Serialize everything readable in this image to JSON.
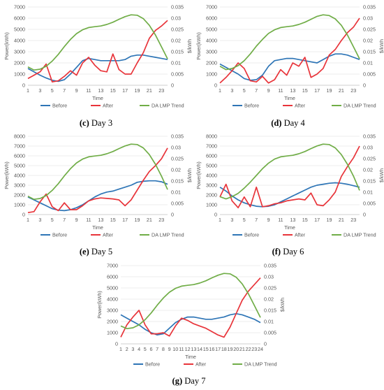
{
  "colors": {
    "before": "#2e75b6",
    "after": "#e8343a",
    "da": "#70ad47",
    "grid": "#d9d9d9",
    "axis": "#bfbfbf",
    "text": "#595959"
  },
  "chart_data": [
    {
      "type": "line",
      "caption_letter": "(c)",
      "caption_text": "Day 3",
      "xlabel": "Time",
      "ylabel": "Power(kWh)",
      "y2label": "$/kWh",
      "x_ticks": [
        1,
        3,
        5,
        7,
        9,
        11,
        13,
        15,
        17,
        19,
        21,
        23
      ],
      "x": [
        1,
        2,
        3,
        4,
        5,
        6,
        7,
        8,
        9,
        10,
        11,
        12,
        13,
        14,
        15,
        16,
        17,
        18,
        19,
        20,
        21,
        22,
        23,
        24
      ],
      "ylim": [
        0,
        7000
      ],
      "y_ticks": [
        0,
        1000,
        2000,
        3000,
        4000,
        5000,
        6000,
        7000
      ],
      "y2lim": [
        0,
        0.035
      ],
      "y2_ticks": [
        "0",
        "0.005",
        "0.01",
        "0.015",
        "0.02",
        "0.025",
        "0.03",
        "0.035"
      ],
      "legend_position": "bottom",
      "series": [
        {
          "name": "Before",
          "axis": "left",
          "values": [
            1500,
            1200,
            900,
            650,
            450,
            350,
            500,
            1000,
            1600,
            2200,
            2400,
            2300,
            2200,
            2200,
            2200,
            2200,
            2300,
            2600,
            2700,
            2700,
            2600,
            2500,
            2400,
            2300
          ]
        },
        {
          "name": "After",
          "axis": "left",
          "values": [
            600,
            900,
            1200,
            1900,
            300,
            400,
            800,
            1300,
            900,
            2000,
            2500,
            1800,
            1300,
            1200,
            2800,
            1400,
            1000,
            1000,
            2000,
            2900,
            4200,
            4900,
            5300,
            5800
          ]
        },
        {
          "name": "DA LMP Trend",
          "axis": "right",
          "values": [
            0.0082,
            0.0068,
            0.0072,
            0.0085,
            0.0108,
            0.0138,
            0.0173,
            0.0205,
            0.0231,
            0.0248,
            0.0258,
            0.0262,
            0.0265,
            0.0272,
            0.0282,
            0.0295,
            0.0307,
            0.0315,
            0.0313,
            0.0298,
            0.0268,
            0.0225,
            0.0172,
            0.0118
          ]
        }
      ]
    },
    {
      "type": "line",
      "caption_letter": "(d)",
      "caption_text": "Day 4",
      "xlabel": "Time",
      "ylabel": "Power(kWh)",
      "y2label": "$/kWh",
      "x_ticks": [
        1,
        3,
        5,
        7,
        9,
        11,
        13,
        15,
        17,
        19,
        21,
        23
      ],
      "x": [
        1,
        2,
        3,
        4,
        5,
        6,
        7,
        8,
        9,
        10,
        11,
        12,
        13,
        14,
        15,
        16,
        17,
        18,
        19,
        20,
        21,
        22,
        23,
        24
      ],
      "ylim": [
        0,
        7000
      ],
      "y_ticks": [
        0,
        1000,
        2000,
        3000,
        4000,
        5000,
        6000,
        7000
      ],
      "y2lim": [
        0,
        0.035
      ],
      "y2_ticks": [
        "0",
        "0.005",
        "0.01",
        "0.015",
        "0.02",
        "0.025",
        "0.03",
        "0.035"
      ],
      "legend_position": "bottom",
      "series": [
        {
          "name": "Before",
          "axis": "left",
          "values": [
            1900,
            1600,
            1300,
            1000,
            600,
            450,
            500,
            900,
            1700,
            2200,
            2300,
            2400,
            2400,
            2300,
            2200,
            2100,
            2000,
            2300,
            2600,
            2800,
            2800,
            2700,
            2500,
            2300
          ]
        },
        {
          "name": "After",
          "axis": "left",
          "values": [
            200,
            700,
            1300,
            2000,
            1500,
            400,
            300,
            800,
            200,
            500,
            1400,
            900,
            2000,
            1700,
            2500,
            700,
            1000,
            1500,
            2700,
            3200,
            4000,
            4700,
            5200,
            6000
          ]
        },
        {
          "name": "DA LMP Trend",
          "axis": "right",
          "values": [
            0.0085,
            0.007,
            0.0075,
            0.0088,
            0.011,
            0.014,
            0.0175,
            0.0205,
            0.0232,
            0.0248,
            0.0258,
            0.0262,
            0.0265,
            0.0272,
            0.0282,
            0.0295,
            0.0308,
            0.0315,
            0.0312,
            0.0297,
            0.0268,
            0.0225,
            0.0172,
            0.0118
          ]
        }
      ]
    },
    {
      "type": "line",
      "caption_letter": "(e)",
      "caption_text": "Day 5",
      "xlabel": "Time",
      "ylabel": "Power(kWh)",
      "y2label": "$/kWh",
      "x_ticks": [
        1,
        3,
        5,
        7,
        9,
        11,
        13,
        15,
        17,
        19,
        21,
        23
      ],
      "x": [
        1,
        2,
        3,
        4,
        5,
        6,
        7,
        8,
        9,
        10,
        11,
        12,
        13,
        14,
        15,
        16,
        17,
        18,
        19,
        20,
        21,
        22,
        23,
        24
      ],
      "ylim": [
        0,
        8000
      ],
      "y_ticks": [
        0,
        1000,
        2000,
        3000,
        4000,
        5000,
        6000,
        7000,
        8000
      ],
      "y2lim": [
        0,
        0.035
      ],
      "y2_ticks": [
        "0",
        "0.005",
        "0.01",
        "0.015",
        "0.02",
        "0.025",
        "0.03",
        "0.035"
      ],
      "legend_position": "bottom",
      "series": [
        {
          "name": "Before",
          "axis": "left",
          "values": [
            1800,
            1500,
            1200,
            900,
            600,
            450,
            400,
            500,
            700,
            1000,
            1400,
            1800,
            2100,
            2300,
            2400,
            2600,
            2800,
            3000,
            3300,
            3400,
            3450,
            3450,
            3350,
            3100
          ]
        },
        {
          "name": "After",
          "axis": "left",
          "values": [
            200,
            300,
            1300,
            2100,
            800,
            400,
            1200,
            500,
            500,
            900,
            1400,
            1600,
            1700,
            1650,
            1600,
            1500,
            900,
            1500,
            2500,
            3500,
            4400,
            5000,
            5700,
            6800
          ]
        },
        {
          "name": "DA LMP Trend",
          "axis": "right",
          "values": [
            0.0082,
            0.0068,
            0.0072,
            0.0085,
            0.0108,
            0.0138,
            0.0173,
            0.0205,
            0.0231,
            0.0248,
            0.0258,
            0.0262,
            0.0265,
            0.0272,
            0.0282,
            0.0295,
            0.0307,
            0.0315,
            0.0313,
            0.0298,
            0.0268,
            0.0225,
            0.0172,
            0.0112
          ]
        }
      ]
    },
    {
      "type": "line",
      "caption_letter": "(f)",
      "caption_text": "Day 6",
      "xlabel": "Time",
      "ylabel": "Power(kWh)",
      "y2label": "$/kWh",
      "x_ticks": [
        1,
        3,
        5,
        7,
        9,
        11,
        13,
        15,
        17,
        19,
        21,
        23
      ],
      "x": [
        1,
        2,
        3,
        4,
        5,
        6,
        7,
        8,
        9,
        10,
        11,
        12,
        13,
        14,
        15,
        16,
        17,
        18,
        19,
        20,
        21,
        22,
        23,
        24
      ],
      "ylim": [
        0,
        8000
      ],
      "y_ticks": [
        0,
        1000,
        2000,
        3000,
        4000,
        5000,
        6000,
        7000,
        8000
      ],
      "y2lim": [
        0,
        0.035
      ],
      "y2_ticks": [
        "0",
        "0.005",
        "0.01",
        "0.015",
        "0.02",
        "0.025",
        "0.03",
        "0.035"
      ],
      "legend_position": "bottom",
      "series": [
        {
          "name": "Before",
          "axis": "left",
          "values": [
            2800,
            2400,
            1900,
            1500,
            1200,
            1000,
            850,
            800,
            850,
            1000,
            1300,
            1600,
            1900,
            2200,
            2500,
            2800,
            3000,
            3100,
            3200,
            3250,
            3200,
            3100,
            2950,
            2800
          ]
        },
        {
          "name": "After",
          "axis": "left",
          "values": [
            1800,
            3100,
            1400,
            700,
            1800,
            800,
            2800,
            800,
            900,
            1100,
            1200,
            1400,
            1500,
            1600,
            1500,
            2200,
            1000,
            900,
            1500,
            2300,
            3900,
            4900,
            5800,
            7000
          ]
        },
        {
          "name": "DA LMP Trend",
          "axis": "right",
          "values": [
            0.008,
            0.007,
            0.008,
            0.0095,
            0.0118,
            0.0145,
            0.0175,
            0.0205,
            0.023,
            0.0248,
            0.0258,
            0.0262,
            0.0265,
            0.0272,
            0.0282,
            0.0295,
            0.0307,
            0.0315,
            0.0313,
            0.0298,
            0.0268,
            0.0225,
            0.0172,
            0.0108
          ]
        }
      ]
    },
    {
      "type": "line",
      "caption_letter": "(g)",
      "caption_text": "Day 7",
      "xlabel": "Time",
      "ylabel": "Power(kWh)",
      "y2label": "$/kWh",
      "x_ticks": [
        1,
        2,
        3,
        4,
        5,
        6,
        7,
        8,
        9,
        10,
        11,
        12,
        13,
        14,
        15,
        16,
        17,
        18,
        19,
        20,
        21,
        22,
        23,
        24
      ],
      "x": [
        1,
        2,
        3,
        4,
        5,
        6,
        7,
        8,
        9,
        10,
        11,
        12,
        13,
        14,
        15,
        16,
        17,
        18,
        19,
        20,
        21,
        22,
        23,
        24
      ],
      "ylim": [
        0,
        7000
      ],
      "y_ticks": [
        0,
        1000,
        2000,
        3000,
        4000,
        5000,
        6000,
        7000
      ],
      "y2lim": [
        0,
        0.035
      ],
      "y2_ticks": [
        "0",
        "0.005",
        "0.01",
        "0.015",
        "0.02",
        "0.025",
        "0.03",
        "0.035"
      ],
      "legend_position": "bottom",
      "series": [
        {
          "name": "Before",
          "axis": "left",
          "values": [
            2600,
            2300,
            2000,
            1700,
            1300,
            1000,
            800,
            900,
            1400,
            1900,
            2200,
            2400,
            2400,
            2300,
            2200,
            2200,
            2300,
            2400,
            2600,
            2700,
            2600,
            2400,
            2200,
            1900
          ]
        },
        {
          "name": "After",
          "axis": "left",
          "values": [
            600,
            1700,
            2400,
            3000,
            1700,
            900,
            900,
            1000,
            700,
            1600,
            2300,
            2100,
            1800,
            1600,
            1400,
            1100,
            800,
            600,
            1500,
            2700,
            3900,
            4700,
            5300,
            5900
          ]
        },
        {
          "name": "DA LMP Trend",
          "axis": "right",
          "values": [
            0.008,
            0.0068,
            0.0072,
            0.0085,
            0.0108,
            0.0138,
            0.0173,
            0.0205,
            0.0231,
            0.0248,
            0.0258,
            0.0262,
            0.0265,
            0.0272,
            0.0282,
            0.0295,
            0.0307,
            0.0315,
            0.0313,
            0.0298,
            0.0268,
            0.0225,
            0.0172,
            0.0118
          ]
        }
      ]
    }
  ]
}
